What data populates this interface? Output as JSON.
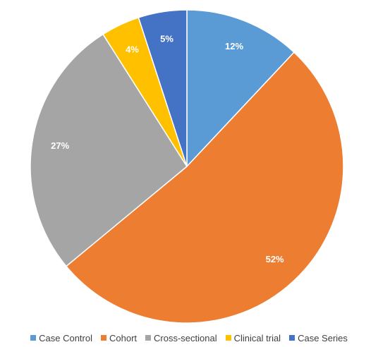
{
  "chart_data": {
    "type": "pie",
    "categories": [
      "Case Control",
      "Cohort",
      "Cross-sectional",
      "Clinical trial",
      "Case Series"
    ],
    "values": [
      12,
      52,
      27,
      4,
      5
    ],
    "labels": [
      "12%",
      "52%",
      "27%",
      "4%",
      "5%"
    ],
    "colors": [
      "#5B9BD5",
      "#ED7D31",
      "#A5A5A5",
      "#FFC000",
      "#4472C4"
    ],
    "legend_position": "bottom",
    "start_angle": "top",
    "direction": "clockwise"
  }
}
